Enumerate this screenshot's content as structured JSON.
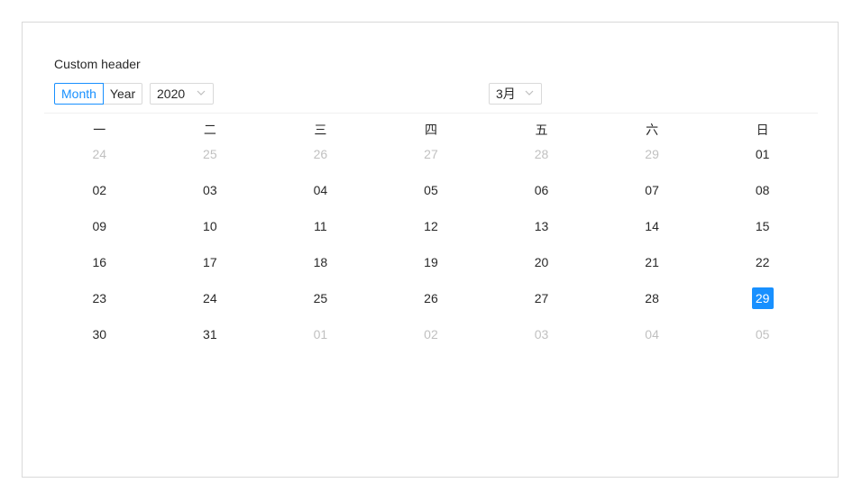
{
  "header": {
    "title": "Custom header",
    "mode_month": "Month",
    "mode_year": "Year",
    "year_value": "2020",
    "month_value": "3月"
  },
  "weekdays": [
    "一",
    "二",
    "三",
    "四",
    "五",
    "六",
    "日"
  ],
  "weeks": [
    [
      {
        "d": "24",
        "out": true
      },
      {
        "d": "25",
        "out": true
      },
      {
        "d": "26",
        "out": true
      },
      {
        "d": "27",
        "out": true
      },
      {
        "d": "28",
        "out": true
      },
      {
        "d": "29",
        "out": true
      },
      {
        "d": "01",
        "out": false
      }
    ],
    [
      {
        "d": "02",
        "out": false
      },
      {
        "d": "03",
        "out": false
      },
      {
        "d": "04",
        "out": false
      },
      {
        "d": "05",
        "out": false
      },
      {
        "d": "06",
        "out": false
      },
      {
        "d": "07",
        "out": false
      },
      {
        "d": "08",
        "out": false
      }
    ],
    [
      {
        "d": "09",
        "out": false
      },
      {
        "d": "10",
        "out": false
      },
      {
        "d": "11",
        "out": false
      },
      {
        "d": "12",
        "out": false
      },
      {
        "d": "13",
        "out": false
      },
      {
        "d": "14",
        "out": false
      },
      {
        "d": "15",
        "out": false
      }
    ],
    [
      {
        "d": "16",
        "out": false
      },
      {
        "d": "17",
        "out": false
      },
      {
        "d": "18",
        "out": false
      },
      {
        "d": "19",
        "out": false
      },
      {
        "d": "20",
        "out": false
      },
      {
        "d": "21",
        "out": false
      },
      {
        "d": "22",
        "out": false
      }
    ],
    [
      {
        "d": "23",
        "out": false
      },
      {
        "d": "24",
        "out": false
      },
      {
        "d": "25",
        "out": false
      },
      {
        "d": "26",
        "out": false
      },
      {
        "d": "27",
        "out": false
      },
      {
        "d": "28",
        "out": false
      },
      {
        "d": "29",
        "out": false,
        "selected": true
      }
    ],
    [
      {
        "d": "30",
        "out": false
      },
      {
        "d": "31",
        "out": false
      },
      {
        "d": "01",
        "out": true
      },
      {
        "d": "02",
        "out": true
      },
      {
        "d": "03",
        "out": true
      },
      {
        "d": "04",
        "out": true
      },
      {
        "d": "05",
        "out": true
      }
    ]
  ],
  "colors": {
    "accent": "#1890ff",
    "border": "#d9d9d9",
    "muted_text": "#bfbfbf"
  }
}
